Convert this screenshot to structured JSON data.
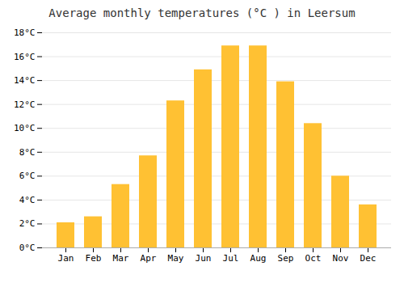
{
  "chart_data": {
    "type": "bar",
    "title": "Average monthly temperatures (°C ) in Leersum",
    "categories": [
      "Jan",
      "Feb",
      "Mar",
      "Apr",
      "May",
      "Jun",
      "Jul",
      "Aug",
      "Sep",
      "Oct",
      "Nov",
      "Dec"
    ],
    "values": [
      2.1,
      2.6,
      5.3,
      7.7,
      12.3,
      14.9,
      16.9,
      16.9,
      13.9,
      10.4,
      6.0,
      3.6
    ],
    "color": "#FFC133",
    "ylim": [
      0,
      18
    ],
    "yticks": [
      {
        "value": 0,
        "label": "0°C"
      },
      {
        "value": 2,
        "label": "2°C"
      },
      {
        "value": 4,
        "label": "4°C"
      },
      {
        "value": 6,
        "label": "6°C"
      },
      {
        "value": 8,
        "label": "8°C"
      },
      {
        "value": 10,
        "label": "10°C"
      },
      {
        "value": 12,
        "label": "12°C"
      },
      {
        "value": 14,
        "label": "14°C"
      },
      {
        "value": 16,
        "label": "16°C"
      },
      {
        "value": 18,
        "label": "18°C"
      }
    ],
    "grid": true
  }
}
